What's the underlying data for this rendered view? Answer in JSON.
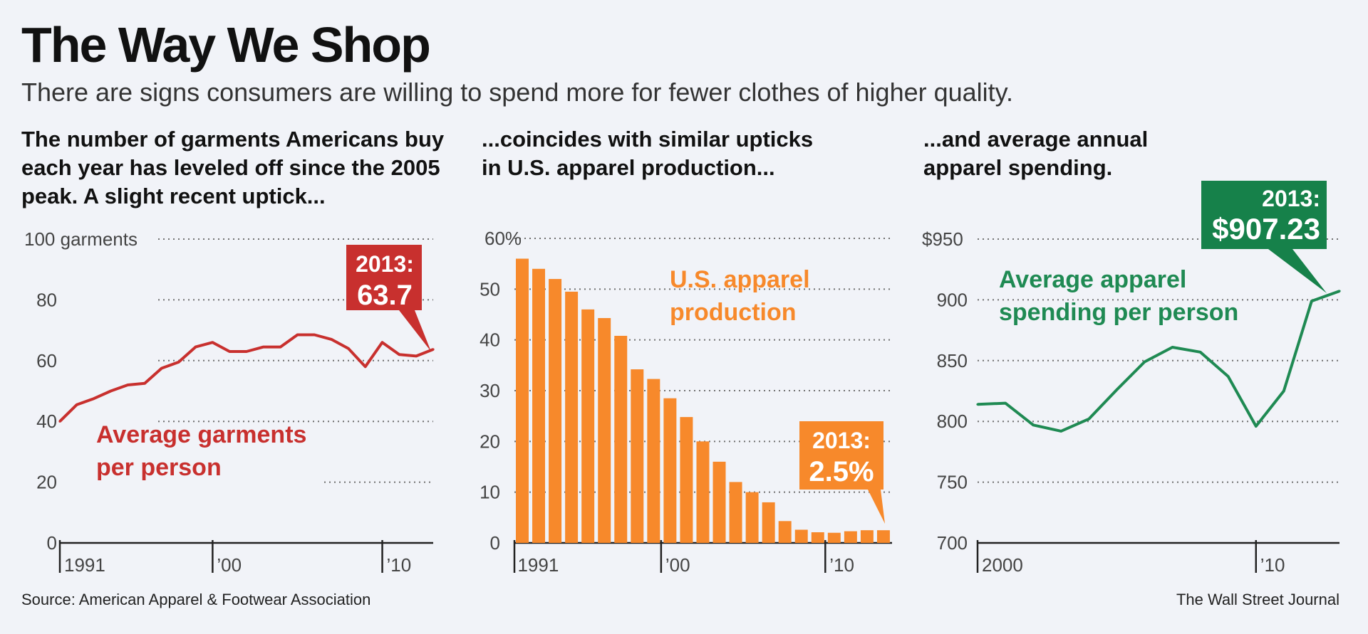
{
  "header": {
    "title": "The Way We Shop",
    "subtitle": "There are signs consumers are willing to spend more for fewer clothes of higher quality."
  },
  "panels": {
    "garments": {
      "caption": [
        "The number of garments Americans buy",
        "each year has leveled off since the 2005",
        "peak. A slight recent uptick..."
      ],
      "series_label": [
        "Average garments",
        "per person"
      ],
      "callout": [
        "2013:",
        "63.7"
      ],
      "y_first_tick": "100 garments",
      "x_ticks": [
        "1991",
        "’00",
        "’10"
      ]
    },
    "production": {
      "caption": [
        "...coincides with similar upticks",
        "in U.S. apparel production..."
      ],
      "series_label": [
        "U.S. apparel",
        "production"
      ],
      "callout": [
        "2013:",
        "2.5%"
      ],
      "x_ticks": [
        "1991",
        "’00",
        "’10"
      ]
    },
    "spending": {
      "caption": [
        "...and average annual",
        "apparel spending."
      ],
      "series_label": [
        "Average apparel",
        "spending per person"
      ],
      "callout": [
        "2013:",
        "$907.23"
      ],
      "x_ticks": [
        "2000",
        "’10"
      ]
    }
  },
  "footer": {
    "source": "Source: American Apparel & Footwear Association",
    "credit": "The Wall Street Journal"
  },
  "colors": {
    "garments": "#c8302e",
    "production": "#f7892b",
    "spending": "#1f8a53",
    "callout_spending": "#16814a"
  },
  "chart_data": [
    {
      "type": "line",
      "title": "The number of garments Americans buy each year has leveled off since the 2005 peak. A slight recent uptick...",
      "ylabel": "garments",
      "x": [
        1991,
        1992,
        1993,
        1994,
        1995,
        1996,
        1997,
        1998,
        1999,
        2000,
        2001,
        2002,
        2003,
        2004,
        2005,
        2006,
        2007,
        2008,
        2009,
        2010,
        2011,
        2012,
        2013
      ],
      "series": [
        {
          "name": "Average garments per person",
          "values": [
            40,
            45.5,
            47.5,
            50,
            52,
            52.5,
            57.5,
            59.5,
            64.5,
            66,
            63,
            63,
            64.5,
            64.5,
            68.5,
            68.5,
            67,
            64,
            58,
            66,
            62,
            61.5,
            63.7
          ]
        }
      ],
      "ylim": [
        0,
        100
      ],
      "yticks": [
        0,
        20,
        40,
        60,
        80,
        100
      ],
      "y_tick_labels": [
        "0",
        "20",
        "40",
        "60",
        "80",
        "100 garments"
      ],
      "x_tick_labels": [
        "1991",
        "’00",
        "’10"
      ],
      "grid": true
    },
    {
      "type": "bar",
      "title": "...coincides with similar upticks in U.S. apparel production...",
      "ylabel": "%",
      "categories": [
        "1991",
        "1992",
        "1993",
        "1994",
        "1995",
        "1996",
        "1997",
        "1998",
        "1999",
        "2000",
        "2001",
        "2002",
        "2003",
        "2004",
        "2005",
        "2006",
        "2007",
        "2008",
        "2009",
        "2010",
        "2011",
        "2012",
        "2013"
      ],
      "series": [
        {
          "name": "U.S. apparel production",
          "values": [
            56,
            54,
            52,
            49.5,
            46,
            44.3,
            40.8,
            34.2,
            32.3,
            28.5,
            24.8,
            20,
            16,
            12,
            10,
            8,
            4.3,
            2.6,
            2.1,
            2,
            2.3,
            2.5,
            2.5
          ]
        }
      ],
      "ylim": [
        0,
        60
      ],
      "yticks": [
        0,
        10,
        20,
        30,
        40,
        50,
        60
      ],
      "y_tick_labels": [
        "0",
        "10",
        "20",
        "30",
        "40",
        "50",
        "60%"
      ],
      "x_tick_labels": [
        "1991",
        "’00",
        "’10"
      ],
      "grid": true
    },
    {
      "type": "line",
      "title": "...and average annual apparel spending.",
      "ylabel": "$",
      "x": [
        2000,
        2001,
        2002,
        2003,
        2004,
        2005,
        2006,
        2007,
        2008,
        2009,
        2010,
        2011,
        2012,
        2013
      ],
      "series": [
        {
          "name": "Average apparel spending per person",
          "values": [
            814,
            815,
            797,
            792,
            802,
            826,
            849,
            861,
            857,
            837,
            796,
            825,
            899,
            907.23
          ]
        }
      ],
      "ylim": [
        700,
        950
      ],
      "yticks": [
        700,
        750,
        800,
        850,
        900,
        950
      ],
      "y_tick_labels": [
        "700",
        "750",
        "800",
        "850",
        "900",
        "$950"
      ],
      "x_tick_labels": [
        "2000",
        "’10"
      ],
      "grid": true
    }
  ]
}
